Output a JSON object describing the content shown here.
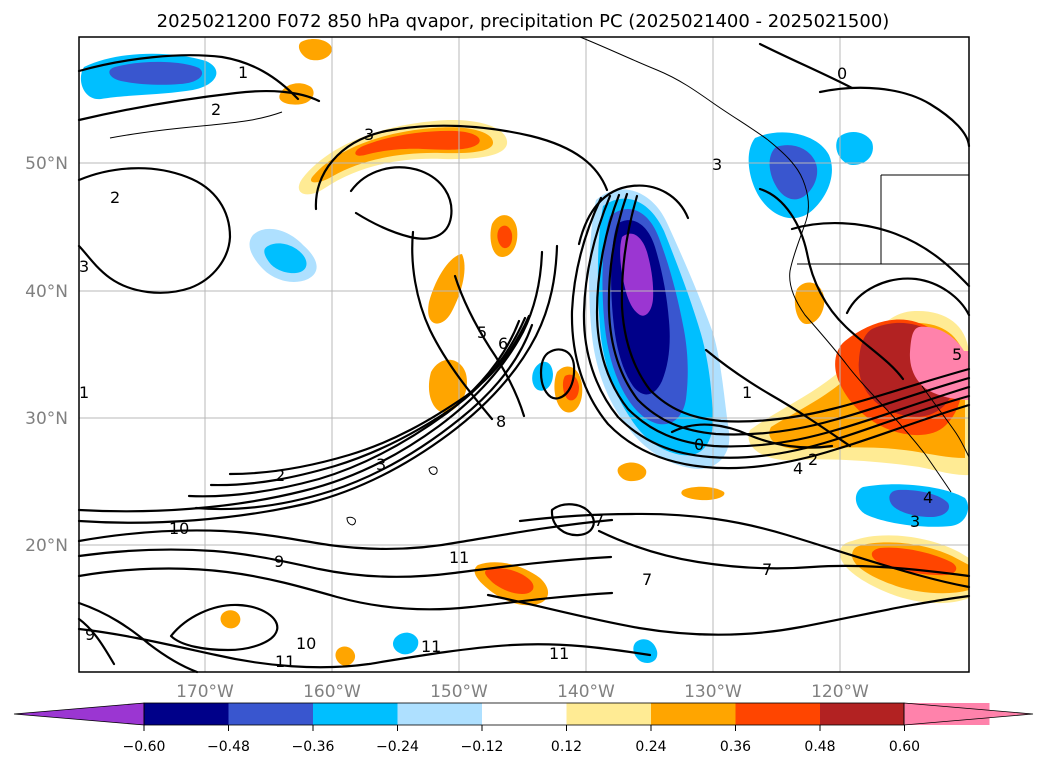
{
  "title": "2025021200 F072 850 hPa qvapor, precipitation PC (2025021400 - 2025021500)",
  "map": {
    "lat_labels": [
      "50°N",
      "40°N",
      "30°N",
      "20°N"
    ],
    "lon_labels": [
      "170°W",
      "160°W",
      "150°W",
      "140°W",
      "130°W",
      "120°W"
    ],
    "contour_labels": [
      "1",
      "2",
      "3",
      "2",
      "3",
      "5",
      "6",
      "8",
      "3",
      "1",
      "0",
      "2",
      "4",
      "2",
      "3",
      "10",
      "9",
      "11",
      "7",
      "7",
      "7",
      "11",
      "10",
      "11",
      "11",
      "9",
      "0",
      "3",
      "4",
      "5",
      "1"
    ]
  },
  "colorbar": {
    "tick_labels": [
      "−0.60",
      "−0.48",
      "−0.36",
      "−0.24",
      "−0.12",
      "0.12",
      "0.24",
      "0.36",
      "0.48",
      "0.60"
    ],
    "colors": [
      "#9b36d2",
      "#000089",
      "#3956cf",
      "#00bfff",
      "#aee0ff",
      "#ffffff",
      "#ffeb94",
      "#ffa500",
      "#ff4500",
      "#b22222",
      "#ff82ab",
      "#ff82ab"
    ]
  }
}
